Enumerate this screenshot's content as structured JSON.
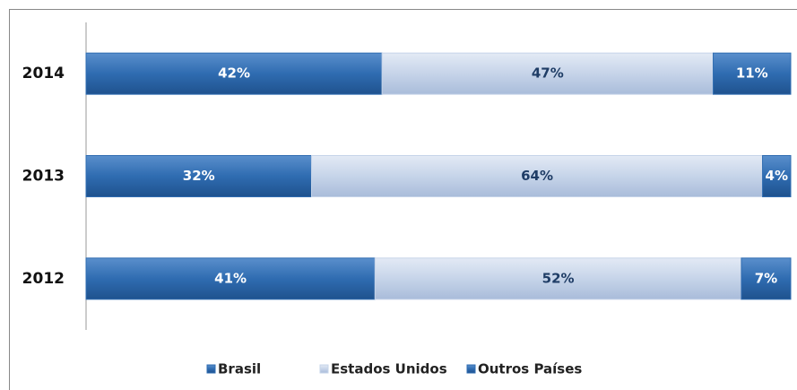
{
  "chart_data": {
    "type": "stacked-bar-horizontal",
    "categories": [
      "2014",
      "2013",
      "2012"
    ],
    "series": [
      {
        "name": "Brasil",
        "color": "#2f6cb1",
        "values": [
          42,
          32,
          41
        ],
        "value_labels": [
          "42%",
          "32%",
          "41%"
        ]
      },
      {
        "name": "Estados Unidos",
        "color": "#c6d4e9",
        "values": [
          47,
          64,
          52
        ],
        "value_labels": [
          "47%",
          "64%",
          "52%"
        ]
      },
      {
        "name": "Outros Países",
        "color": "#2f6cb1",
        "values": [
          11,
          4,
          7
        ],
        "value_labels": [
          "11%",
          "4%",
          "7%"
        ]
      }
    ],
    "legend": "bottom"
  }
}
